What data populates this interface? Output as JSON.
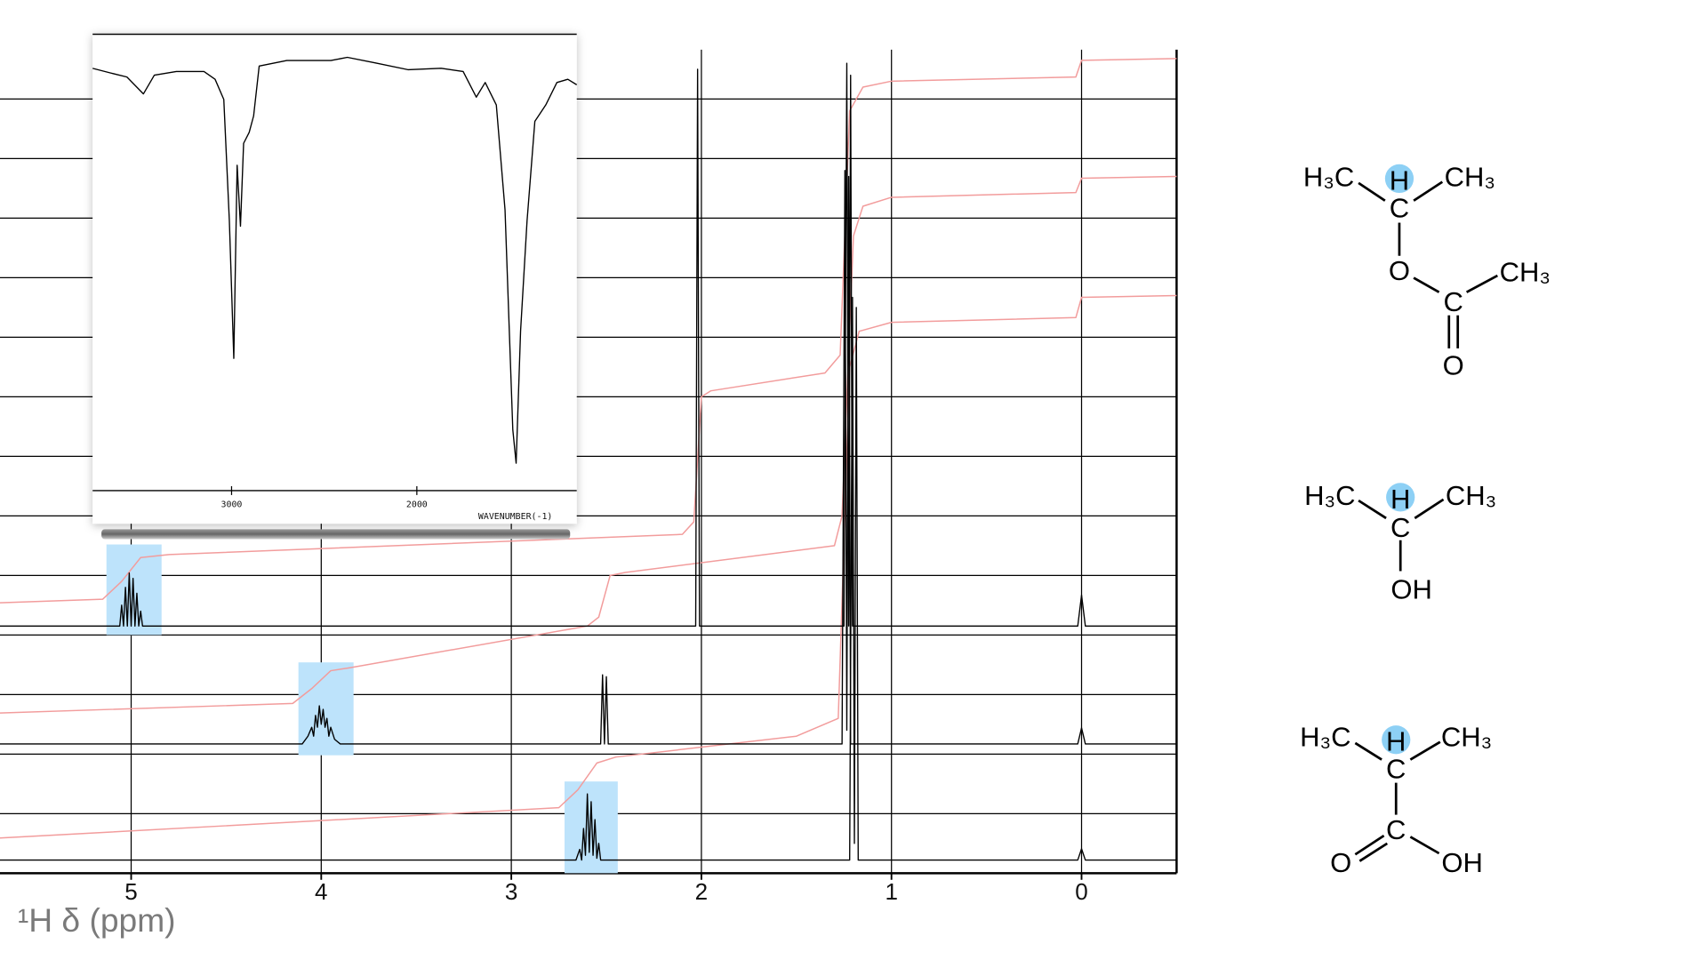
{
  "chart_data": [
    {
      "type": "line",
      "xlabel": "¹H δ (ppm)",
      "xlim": [
        5.69,
        -0.5
      ],
      "ylim": [
        0,
        13.83
      ],
      "xticks": [
        5,
        4,
        3,
        2,
        1,
        0
      ],
      "yticks": [
        1,
        2,
        3,
        4,
        5,
        6,
        7,
        8,
        9,
        10,
        11,
        12,
        13
      ],
      "grid": true,
      "highlights": [
        {
          "xlim": [
            5.13,
            4.84
          ],
          "ylim": [
            4.0,
            5.52
          ],
          "color": "#bde3fb"
        },
        {
          "xlim": [
            4.12,
            3.83
          ],
          "ylim": [
            1.98,
            3.54
          ],
          "color": "#bde3fb"
        },
        {
          "xlim": [
            2.72,
            2.44
          ],
          "ylim": [
            0,
            1.54
          ],
          "color": "#bde3fb"
        }
      ],
      "series": [
        {
          "color": "#f29c9c",
          "x": [
            5.69,
            5.15,
            5.05,
            4.95,
            4.8,
            2.1,
            2.04,
            2.0,
            1.95,
            1.35,
            1.27,
            1.22,
            1.15,
            1.0,
            0.03,
            0.0,
            -0.5
          ],
          "values": [
            4.54,
            4.6,
            4.9,
            5.3,
            5.35,
            5.69,
            5.9,
            8.0,
            8.1,
            8.4,
            8.7,
            12.8,
            13.2,
            13.3,
            13.37,
            13.65,
            13.68
          ]
        },
        {
          "color": "#f29c9c",
          "x": [
            5.69,
            4.15,
            4.05,
            3.95,
            3.85,
            2.6,
            2.54,
            2.48,
            2.4,
            1.3,
            1.26,
            1.2,
            1.15,
            1.0,
            0.03,
            0.0,
            -0.5
          ],
          "values": [
            2.69,
            2.85,
            3.1,
            3.4,
            3.45,
            4.15,
            4.3,
            5.0,
            5.05,
            5.5,
            6.0,
            10.7,
            11.2,
            11.35,
            11.43,
            11.67,
            11.7
          ]
        },
        {
          "color": "#f29c9c",
          "x": [
            5.69,
            2.75,
            2.65,
            2.55,
            2.45,
            1.5,
            1.28,
            1.22,
            1.17,
            1.0,
            0.03,
            0.0,
            -0.5
          ],
          "values": [
            0.59,
            1.1,
            1.4,
            1.85,
            1.95,
            2.3,
            2.6,
            8.5,
            9.1,
            9.25,
            9.33,
            9.67,
            9.7
          ]
        },
        {
          "color": "#000000",
          "x": [
            5.69,
            5.1,
            5.06,
            5.05,
            5.04,
            5.03,
            5.02,
            5.01,
            5.0,
            4.99,
            4.98,
            4.97,
            4.96,
            4.95,
            4.94,
            4.9,
            2.03,
            2.02,
            2.01,
            2.0,
            1.95,
            1.25,
            1.235,
            1.225,
            1.215,
            1.205,
            1.195,
            1.15,
            0.02,
            0.0,
            -0.02,
            -0.5
          ],
          "values": [
            4.15,
            4.15,
            4.15,
            4.5,
            4.15,
            4.8,
            4.15,
            5.04,
            4.15,
            4.95,
            4.15,
            4.7,
            4.15,
            4.4,
            4.15,
            4.15,
            4.15,
            13.5,
            4.15,
            4.15,
            4.15,
            4.15,
            13.6,
            4.15,
            13.4,
            4.15,
            4.15,
            4.15,
            4.15,
            4.67,
            4.15,
            4.15
          ]
        },
        {
          "color": "#000000",
          "x": [
            5.69,
            4.1,
            4.07,
            4.05,
            4.04,
            4.03,
            4.02,
            4.01,
            4.0,
            3.99,
            3.98,
            3.97,
            3.96,
            3.95,
            3.93,
            3.9,
            2.53,
            2.52,
            2.51,
            2.5,
            2.49,
            1.26,
            1.245,
            1.235,
            1.225,
            1.215,
            1.2,
            0.02,
            0.0,
            -0.02,
            -0.5
          ],
          "values": [
            2.17,
            2.17,
            2.3,
            2.45,
            2.3,
            2.65,
            2.45,
            2.81,
            2.5,
            2.75,
            2.45,
            2.6,
            2.3,
            2.45,
            2.25,
            2.17,
            2.17,
            3.33,
            2.17,
            3.3,
            2.17,
            2.17,
            11.8,
            2.4,
            11.7,
            2.17,
            2.17,
            2.17,
            2.44,
            2.17,
            2.17
          ]
        },
        {
          "color": "#000000",
          "x": [
            5.69,
            2.66,
            2.64,
            2.63,
            2.62,
            2.61,
            2.6,
            2.59,
            2.58,
            2.57,
            2.56,
            2.55,
            2.54,
            2.53,
            2.5,
            1.22,
            1.205,
            1.195,
            1.185,
            1.175,
            1.15,
            0.02,
            0.0,
            -0.02,
            -0.5
          ],
          "values": [
            0.22,
            0.22,
            0.4,
            0.22,
            0.75,
            0.3,
            1.33,
            0.35,
            1.2,
            0.3,
            0.9,
            0.25,
            0.5,
            0.22,
            0.22,
            0.22,
            9.67,
            0.5,
            9.5,
            0.22,
            0.22,
            0.22,
            0.41,
            0.22,
            0.22
          ]
        }
      ]
    },
    {
      "type": "line",
      "xlabel": "WAVENUMBER(-1)",
      "xlim": [
        3750,
        1137
      ],
      "ylim": [
        0,
        100
      ],
      "xticks": [
        3000,
        2000
      ],
      "series": [
        {
          "color": "#000000",
          "x": [
            3750,
            3655,
            3565,
            3476,
            3417,
            3298,
            3149,
            3089,
            3042,
            3012,
            2988,
            2970,
            2952,
            2935,
            2905,
            2881,
            2851,
            2702,
            2464,
            2375,
            2226,
            2048,
            1869,
            1750,
            1679,
            1631,
            1571,
            1524,
            1482,
            1464,
            1440,
            1405,
            1363,
            1304,
            1244,
            1185,
            1137
          ],
          "values": [
            92.3,
            91.3,
            90.4,
            86.7,
            90.8,
            91.6,
            91.6,
            89.9,
            85.5,
            59,
            28.9,
            71.1,
            57.8,
            75.9,
            78.3,
            81.9,
            92.8,
            94,
            94,
            94.7,
            93.5,
            92,
            92.3,
            91.6,
            86,
            89.2,
            84.3,
            61.4,
            13.3,
            6,
            34.9,
            59,
            80.7,
            84.3,
            89.2,
            89.9,
            88.7
          ]
        }
      ]
    }
  ],
  "molecules": [
    {
      "labels": [
        "H₃C",
        "H",
        "CH₃",
        "C",
        "O",
        "C",
        "CH₃",
        "O"
      ]
    },
    {
      "labels": [
        "H₃C",
        "H",
        "CH₃",
        "C",
        "OH"
      ]
    },
    {
      "labels": [
        "H₃C",
        "H",
        "CH₃",
        "C",
        "C",
        "O",
        "OH"
      ]
    }
  ]
}
